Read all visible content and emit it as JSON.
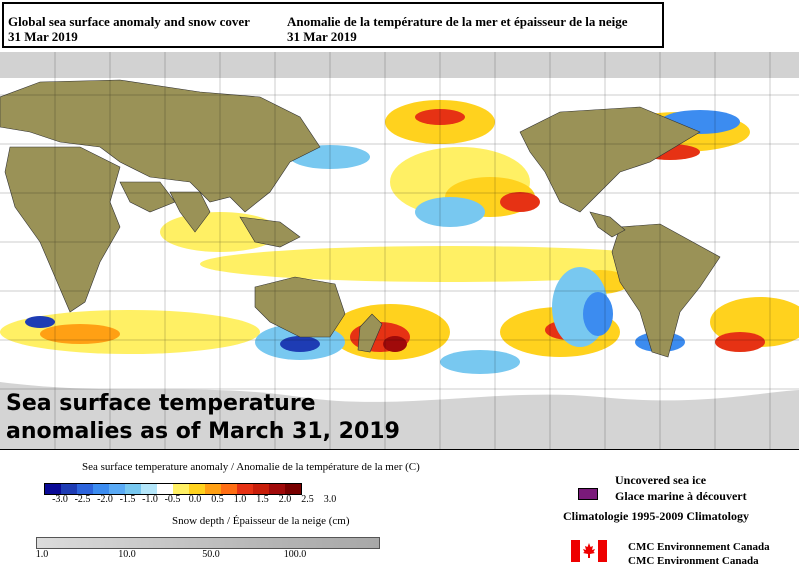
{
  "header": {
    "en_title": "Global sea surface anomaly and snow cover",
    "en_date": "31 Mar 2019",
    "fr_title": "Anomalie de la température de la mer et épaisseur de la neige",
    "fr_date": "31 Mar 2019"
  },
  "overlay": {
    "line1": "Sea surface temperature",
    "line2": "anomalies as of March 31, 2019"
  },
  "colors": {
    "land": "#9a9257",
    "snow": "#c8c8c8",
    "ocean_neutral": "#ffffff",
    "cold_strong": "#1e3cb4",
    "cold": "#3c8cf0",
    "cool": "#78c8f0",
    "warm": "#ffd21e",
    "warmer": "#ffa014",
    "hot": "#e63214",
    "hottest": "#a00a0a",
    "sea_ice": "#7a1a7a"
  },
  "sst_legend": {
    "title": "Sea surface temperature anomaly / Anomalie de la température de la mer (C)",
    "labels": [
      "-3.0",
      "-2.5",
      "-2.0",
      "-1.5",
      "-1.0",
      "-0.5",
      "0.0",
      "0.5",
      "1.0",
      "1.5",
      "2.0",
      "2.5",
      "3.0"
    ],
    "swatches": [
      "#0a0a96",
      "#1e3cb4",
      "#2d64dc",
      "#3c8cf0",
      "#5aaaf5",
      "#78c8f0",
      "#b4e6fa",
      "#ffffff",
      "#fff064",
      "#ffd21e",
      "#ffa014",
      "#ff6e14",
      "#e63214",
      "#c81e0a",
      "#a00a0a",
      "#780000"
    ]
  },
  "snow_legend": {
    "title": "Snow depth / Épaisseur de la neige (cm)",
    "labels": [
      "1.0",
      "10.0",
      "50.0",
      "100.0"
    ]
  },
  "ice_legend": {
    "line1": "Uncovered sea ice",
    "line2": "Glace marine à découvert"
  },
  "climatology": "Climatologie 1995-2009 Climatology",
  "agency": {
    "line1": "CMC Environnement Canada",
    "line2": "CMC Environment Canada"
  }
}
